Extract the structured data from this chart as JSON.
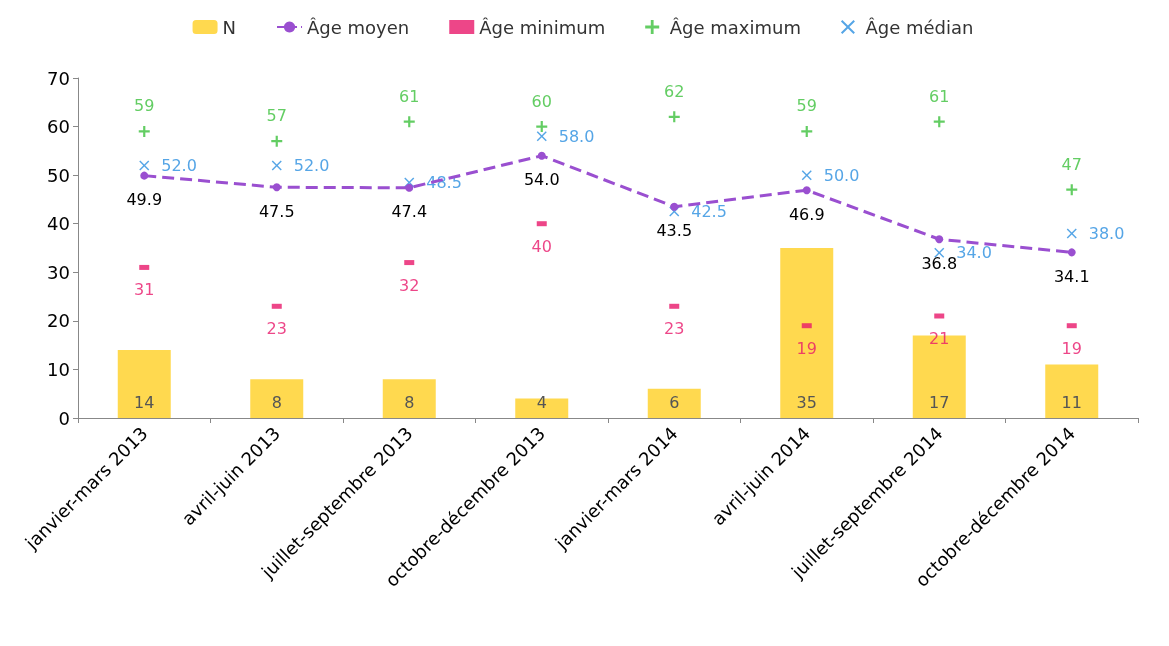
{
  "chart_data": {
    "type": "bar",
    "categories": [
      "janvier-mars 2013",
      "avril-juin 2013",
      "juillet-septembre 2013",
      "octobre-décembre 2013",
      "janvier-mars 2014",
      "avril-juin 2014",
      "juillet-septembre 2014",
      "octobre-décembre 2014"
    ],
    "series": [
      {
        "name": "N",
        "color": "#ffd94f",
        "values": [
          14,
          8,
          8,
          4,
          6,
          35,
          17,
          11
        ],
        "value_labels": [
          "14",
          "8",
          "8",
          "4",
          "6",
          "35",
          "17",
          "11"
        ]
      },
      {
        "name": "Âge moyen",
        "type": "line",
        "color": "#9a4fd0",
        "line_style": "dashed",
        "marker": "circle",
        "values": [
          49.9,
          47.5,
          47.4,
          54.0,
          43.5,
          46.9,
          36.8,
          34.1
        ],
        "value_labels": [
          "49.9",
          "47.5",
          "47.4",
          "54.0",
          "43.5",
          "46.9",
          "36.8",
          "34.1"
        ]
      },
      {
        "name": "Âge minimum",
        "type": "scatter",
        "color": "#e8186a",
        "marker": "square",
        "values": [
          31,
          23,
          32,
          40,
          23,
          19,
          21,
          19
        ],
        "value_labels": [
          "31",
          "23",
          "32",
          "40",
          "23",
          "19",
          "21",
          "19"
        ]
      },
      {
        "name": "Âge maximum",
        "type": "scatter",
        "color": "#3cc13c",
        "marker": "plus",
        "values": [
          59,
          57,
          61,
          60,
          62,
          59,
          61,
          47
        ],
        "value_labels": [
          "59",
          "57",
          "61",
          "60",
          "62",
          "59",
          "61",
          "47"
        ]
      },
      {
        "name": "Âge médian",
        "type": "scatter",
        "color": "#2a8ee0",
        "marker": "cross",
        "values": [
          52.0,
          52.0,
          48.5,
          58.0,
          42.5,
          50.0,
          34.0,
          38.0
        ],
        "value_labels": [
          "52.0",
          "52.0",
          "48.5",
          "58.0",
          "42.5",
          "50.0",
          "34.0",
          "38.0"
        ]
      }
    ],
    "ylim": [
      0,
      70
    ],
    "yticks": [
      0,
      10,
      20,
      30,
      40,
      50,
      60,
      70
    ],
    "grid": false,
    "legend": "top"
  }
}
